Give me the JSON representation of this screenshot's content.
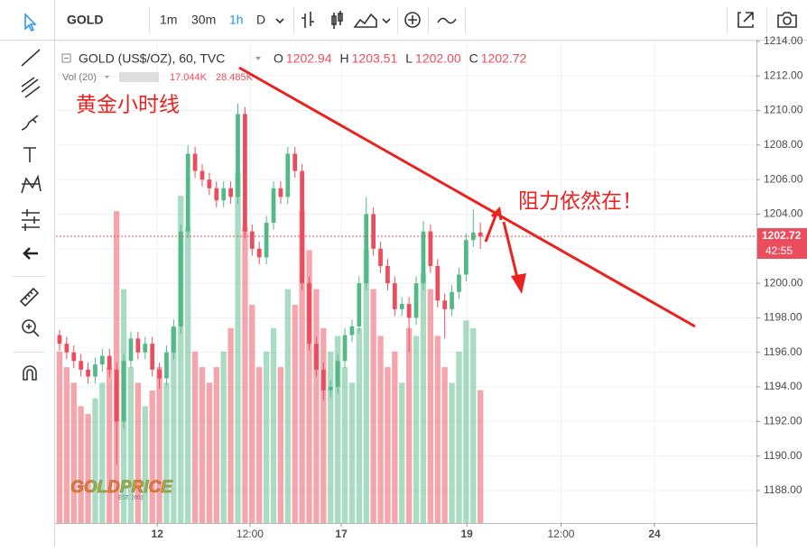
{
  "toolbar": {
    "symbol": "GOLD",
    "intervals": [
      "1m",
      "30m",
      "1h",
      "D"
    ]
  },
  "chart_data": {
    "type": "candlestick",
    "title": "GOLD (US$/OZ), 60, TVC",
    "ohlc_labels": [
      "O",
      "H",
      "L",
      "C"
    ],
    "ohlc_value_labels": [
      "1202.94",
      "1203.51",
      "1202.00",
      "1202.72"
    ],
    "countdown": "42:55",
    "annotations": [
      "黄金小时线",
      "阻力依然在！"
    ],
    "watermark": "GOLDPRICE",
    "watermark_sub": "EST. 2002",
    "up_color": "#53b987",
    "down_color": "#eb4d5c",
    "grid": true,
    "x": [
      0,
      1,
      2,
      3,
      4,
      5,
      6,
      7,
      8,
      9,
      10,
      11,
      12,
      13,
      14,
      15,
      16,
      17,
      18,
      19,
      20,
      21,
      22,
      23,
      24,
      25,
      26,
      27,
      28,
      29,
      30,
      31,
      32,
      33,
      34,
      35,
      36,
      37,
      38,
      39,
      40,
      41,
      42,
      43,
      44,
      45,
      46,
      47,
      48,
      49,
      50,
      51,
      52,
      53,
      54,
      55,
      56,
      57,
      58,
      59
    ],
    "open": [
      1197,
      1196.5,
      1196,
      1195.5,
      1195,
      1194.6,
      1195.3,
      1195.8,
      1195,
      1192,
      1195.5,
      1196.8,
      1196,
      1196.5,
      1195,
      1194.5,
      1196,
      1197.5,
      1203,
      1207.5,
      1206.5,
      1206,
      1205.5,
      1204.8,
      1205.5,
      1205,
      1209.8,
      1203,
      1202,
      1201.5,
      1203.5,
      1205.5,
      1205,
      1207.5,
      1206.5,
      1200,
      1196.5,
      1195,
      1193.8,
      1194,
      1195.5,
      1197,
      1197.5,
      1200,
      1204,
      1202,
      1201,
      1200,
      1198.5,
      1198.8,
      1198,
      1200,
      1203,
      1201,
      1199,
      1198.5,
      1199.5,
      1200.5,
      1202.5,
      1202.94
    ],
    "high": [
      1197.3,
      1196.9,
      1196.4,
      1195.9,
      1195.4,
      1195.7,
      1196.2,
      1196.2,
      1195.4,
      1195.9,
      1197.2,
      1197.2,
      1196.9,
      1196.9,
      1195.4,
      1196.4,
      1197.9,
      1203.4,
      1208,
      1207.9,
      1206.9,
      1206.4,
      1205.9,
      1205.9,
      1205.9,
      1210.4,
      1210.2,
      1203.4,
      1202.4,
      1203.9,
      1205.9,
      1205.9,
      1207.9,
      1207.9,
      1206.9,
      1200.4,
      1196.9,
      1195.4,
      1194.4,
      1195.9,
      1197.4,
      1197.9,
      1200.4,
      1205,
      1204.4,
      1202.4,
      1201.4,
      1200.4,
      1199.2,
      1199.2,
      1200.4,
      1203.6,
      1203.4,
      1201.4,
      1199.4,
      1199.9,
      1200.9,
      1202.9,
      1204.3,
      1203.51
    ],
    "low": [
      1196.1,
      1195.6,
      1195.1,
      1194.6,
      1194.2,
      1194.2,
      1194.9,
      1194.6,
      1189.5,
      1191.6,
      1195.1,
      1195.6,
      1195.6,
      1194.6,
      1193.9,
      1194.1,
      1195.6,
      1197.1,
      1202.6,
      1206.1,
      1205.6,
      1205.1,
      1204.4,
      1204.4,
      1204.6,
      1204.6,
      1202.6,
      1201.6,
      1201.1,
      1201.1,
      1203.1,
      1204.6,
      1204.6,
      1206.1,
      1199.6,
      1196.1,
      1194.6,
      1193.2,
      1193.4,
      1193.6,
      1195.1,
      1196.6,
      1197.1,
      1199.6,
      1201.6,
      1200.6,
      1199.6,
      1198.1,
      1198.1,
      1196,
      1197.6,
      1199.6,
      1200.6,
      1198.6,
      1196.8,
      1198.1,
      1199.1,
      1200.1,
      1202.1,
      1202
    ],
    "close": [
      1196.5,
      1196,
      1195.5,
      1195,
      1194.6,
      1195.3,
      1195.8,
      1195,
      1192,
      1195.5,
      1196.8,
      1196,
      1196.5,
      1195,
      1194.5,
      1196,
      1197.5,
      1203,
      1207.5,
      1206.5,
      1206,
      1205.5,
      1204.8,
      1205.5,
      1205,
      1209.8,
      1203,
      1202,
      1201.5,
      1203.5,
      1205.5,
      1205,
      1207.5,
      1206.5,
      1200,
      1196.5,
      1195,
      1193.8,
      1194,
      1195.5,
      1197,
      1197.5,
      1200,
      1204,
      1202,
      1201,
      1200,
      1198.5,
      1198.8,
      1198,
      1200,
      1203,
      1201,
      1199,
      1198.5,
      1199.5,
      1200.5,
      1202.5,
      1202.94,
      1202.72
    ],
    "volume": {
      "name": "Vol (20)",
      "values": [
        22,
        20,
        18,
        15,
        14,
        16,
        18,
        20,
        40,
        30,
        20,
        18,
        15,
        17,
        20,
        18,
        25,
        42,
        38,
        22,
        20,
        18,
        20,
        22,
        25,
        45,
        38,
        28,
        20,
        22,
        25,
        20,
        30,
        28,
        40,
        35,
        30,
        25,
        22,
        24,
        20,
        18,
        25,
        35,
        30,
        24,
        20,
        22,
        18,
        25,
        24,
        32,
        30,
        24,
        20,
        18,
        22,
        26,
        25,
        17.044
      ],
      "value_label": "17.044K",
      "ma": 28.485,
      "ma_label": "28.485K",
      "ylim": [
        0,
        62
      ]
    },
    "xlim": [
      -0.5,
      97.7
    ],
    "xticks": [
      {
        "value": 13.7,
        "label": "12"
      },
      {
        "value": 26.7,
        "label": "12:00"
      },
      {
        "value": 39.5,
        "label": "17"
      },
      {
        "value": 57.1,
        "label": "19"
      },
      {
        "value": 70.3,
        "label": "12:00"
      },
      {
        "value": 83.4,
        "label": "24"
      }
    ],
    "ylim": [
      1186.12,
      1214.1
    ],
    "yticks": [
      {
        "value": 1188,
        "label": "1188.00"
      },
      {
        "value": 1190,
        "label": "1190.00"
      },
      {
        "value": 1192,
        "label": "1192.00"
      },
      {
        "value": 1194,
        "label": "1194.00"
      },
      {
        "value": 1196,
        "label": "1196.00"
      },
      {
        "value": 1198,
        "label": "1198.00"
      },
      {
        "value": 1200,
        "label": "1200.00"
      },
      {
        "value": 1202,
        "label": "1202.00"
      },
      {
        "value": 1204,
        "label": "1204.00"
      },
      {
        "value": 1206,
        "label": "1206.00"
      },
      {
        "value": 1208,
        "label": "1208.00"
      },
      {
        "value": 1210,
        "label": "1210.00"
      },
      {
        "value": 1212,
        "label": "1212.00"
      },
      {
        "value": 1214,
        "label": "1214.00"
      }
    ]
  }
}
